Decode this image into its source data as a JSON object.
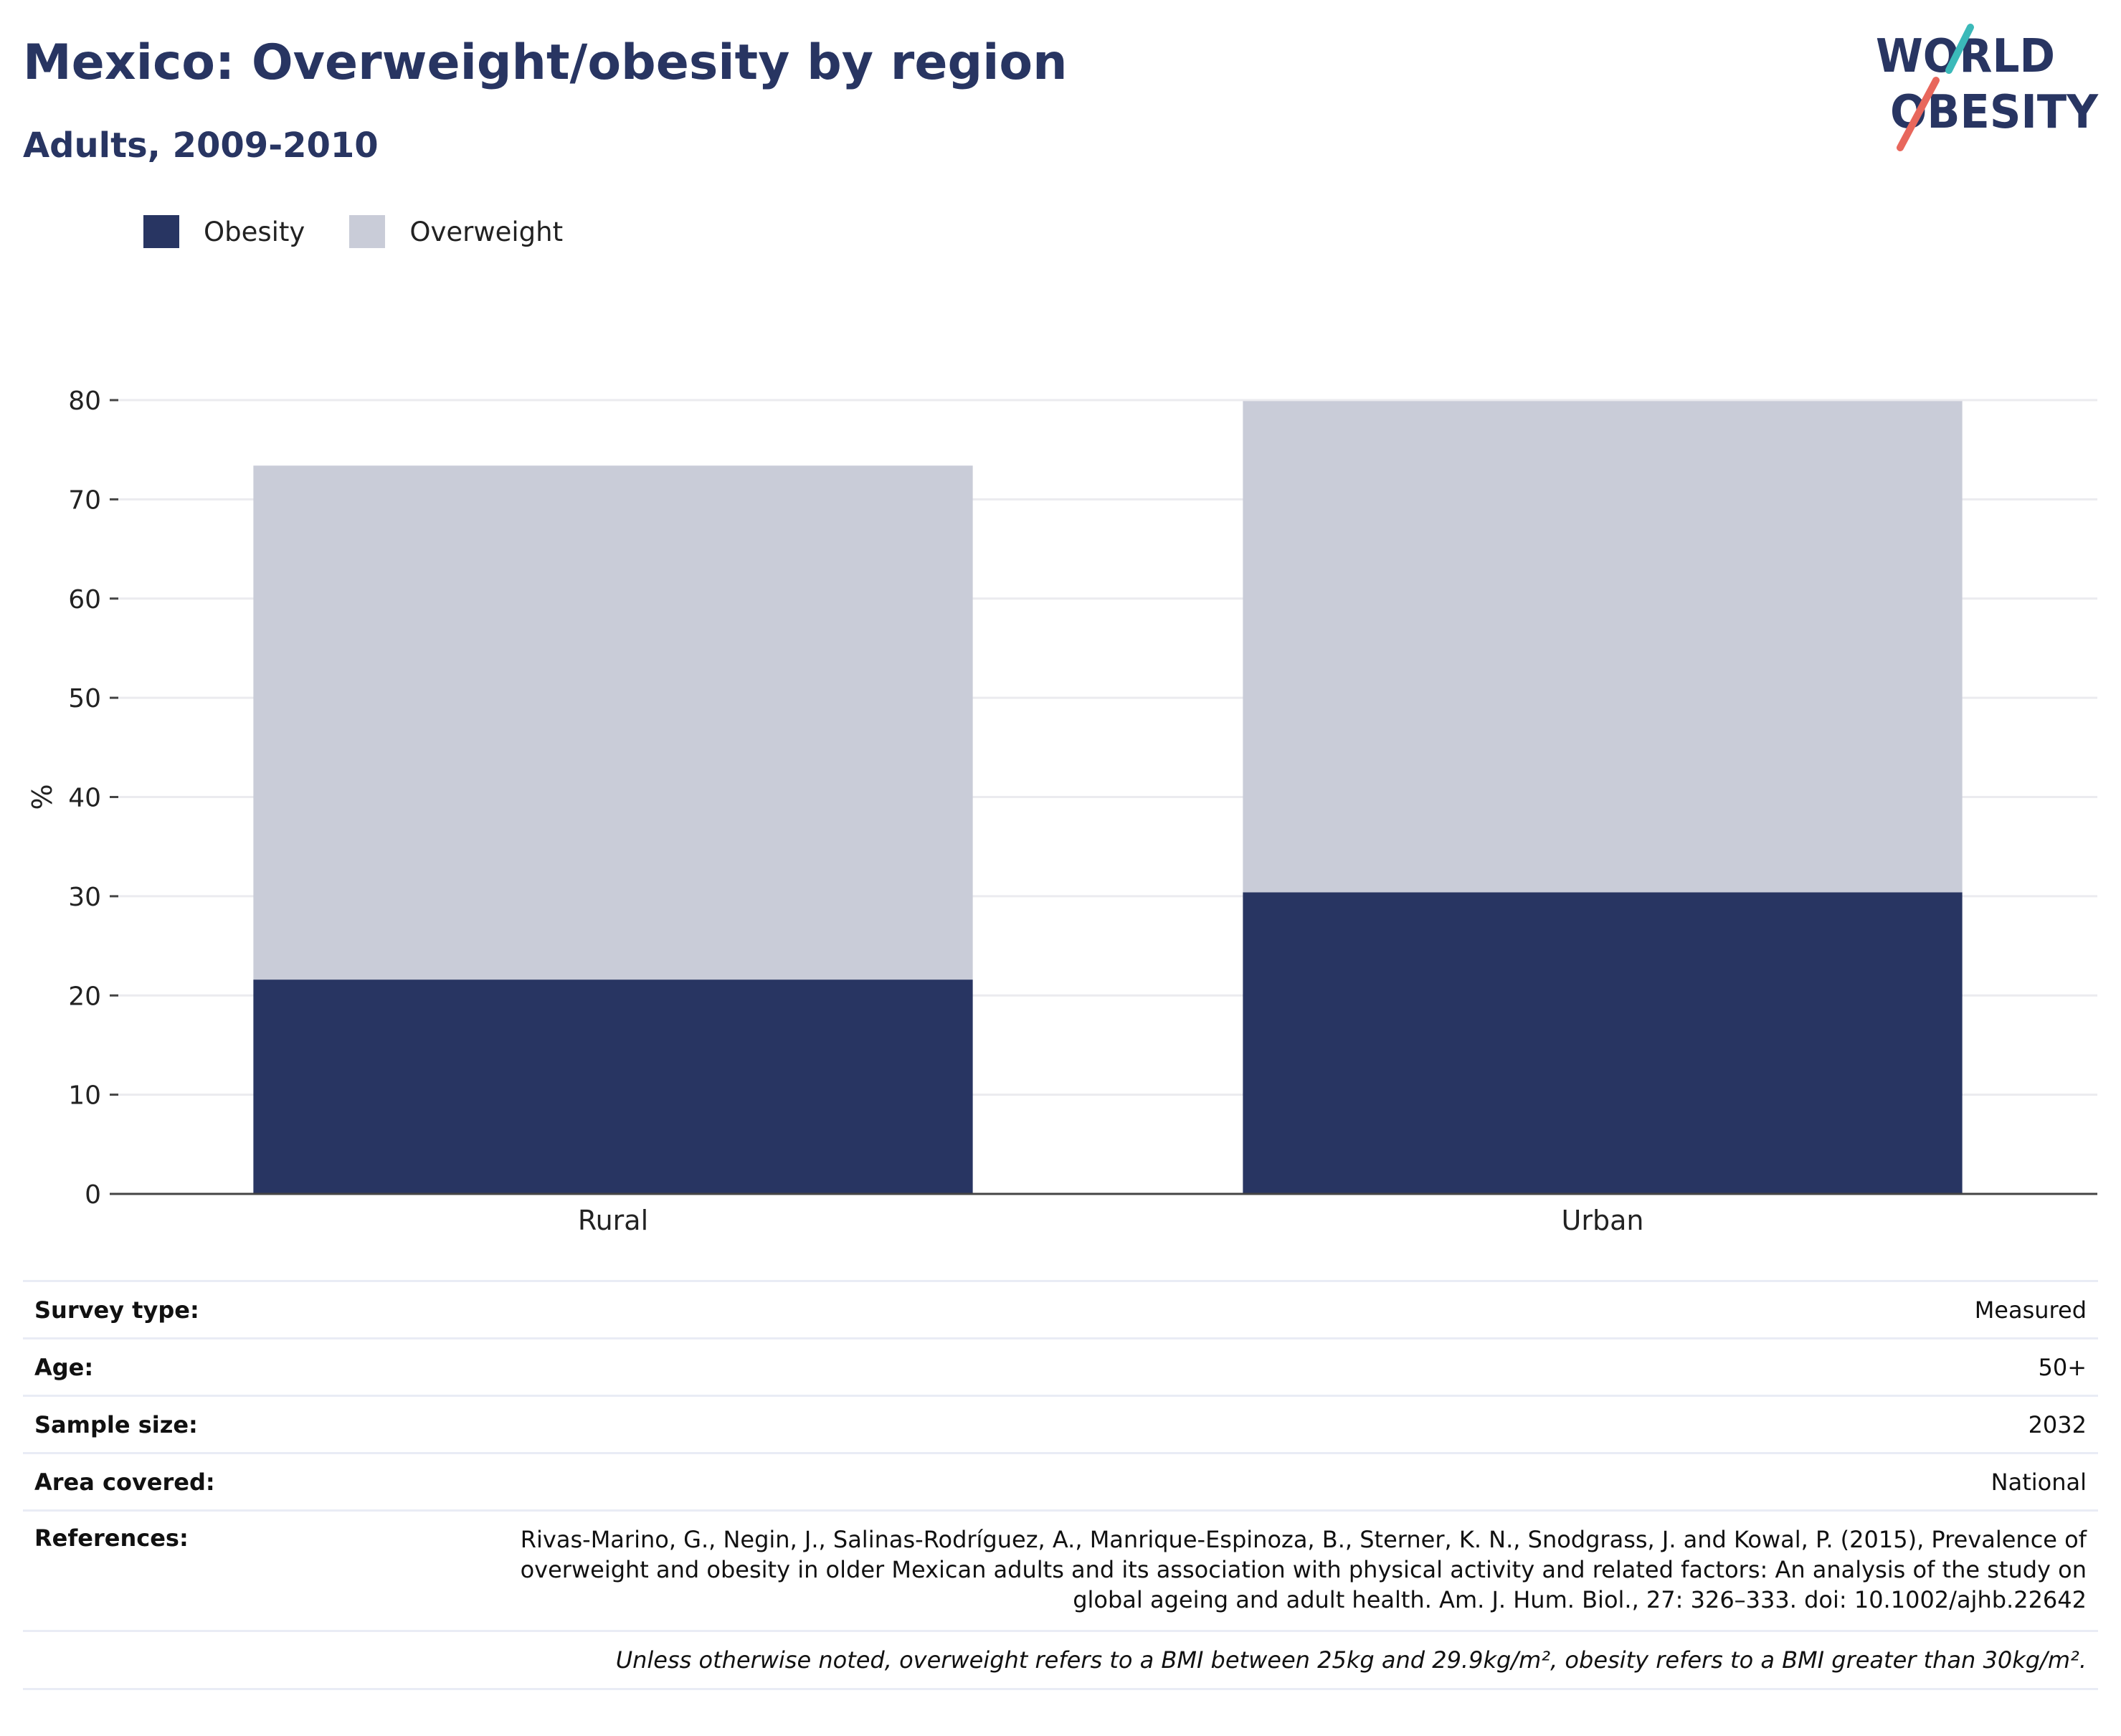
{
  "header": {
    "title": "Mexico: Overweight/obesity by region",
    "subtitle": "Adults, 2009-2010"
  },
  "logo": {
    "line1": "WORLD",
    "line2": "OBESITY"
  },
  "colors": {
    "obesity": "#283562",
    "overweight": "#c9ccd8",
    "accent_teal": "#3bb9b9",
    "accent_coral": "#e8675c",
    "grid": "#ebebef",
    "axis": "#444444"
  },
  "legend": {
    "obesity": "Obesity",
    "overweight": "Overweight"
  },
  "chart_data": {
    "type": "bar",
    "stacked": true,
    "categories": [
      "Rural",
      "Urban"
    ],
    "series": [
      {
        "name": "Obesity",
        "values": [
          21.6,
          30.4
        ]
      },
      {
        "name": "Overweight",
        "values": [
          51.8,
          49.5
        ]
      }
    ],
    "ylabel": "%",
    "ylim": [
      0,
      80
    ],
    "yticks": [
      0,
      10,
      20,
      30,
      40,
      50,
      60,
      70,
      80
    ],
    "grid": true,
    "legend_position": "top-left"
  },
  "meta": {
    "survey_type": {
      "label": "Survey type:",
      "value": "Measured"
    },
    "age": {
      "label": "Age:",
      "value": "50+"
    },
    "sample_size": {
      "label": "Sample size:",
      "value": "2032"
    },
    "area_covered": {
      "label": "Area covered:",
      "value": "National"
    },
    "references": {
      "label": "References:",
      "value": "Rivas-Marino, G., Negin, J., Salinas-Rodríguez, A., Manrique-Espinoza, B., Sterner, K. N., Snodgrass, J. and Kowal, P. (2015), Prevalence of overweight and obesity in older Mexican adults and its association with physical activity and related factors: An analysis of the study on global ageing and adult health. Am. J. Hum. Biol., 27: 326–333. doi: 10.1002/ajhb.22642"
    },
    "note": "Unless otherwise noted, overweight refers to a BMI between 25kg and 29.9kg/m², obesity refers to a BMI greater than 30kg/m²."
  }
}
